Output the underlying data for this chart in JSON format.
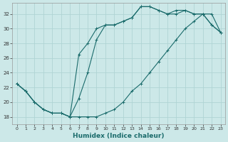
{
  "xlabel": "Humidex (Indice chaleur)",
  "bg_color": "#cce8e8",
  "grid_color": "#b0d4d4",
  "line_color": "#1a6b6b",
  "xlim": [
    -0.5,
    23.5
  ],
  "ylim": [
    17.0,
    33.5
  ],
  "xticks": [
    0,
    1,
    2,
    3,
    4,
    5,
    6,
    7,
    8,
    9,
    10,
    11,
    12,
    13,
    14,
    15,
    16,
    17,
    18,
    19,
    20,
    21,
    22,
    23
  ],
  "yticks": [
    18,
    20,
    22,
    24,
    26,
    28,
    30,
    32
  ],
  "series1_x": [
    0,
    1,
    2,
    3,
    4,
    5,
    6,
    7,
    8,
    9,
    10,
    11,
    12,
    13,
    14,
    15,
    16,
    17,
    18,
    19,
    20,
    21,
    22,
    23
  ],
  "series1_y": [
    22.5,
    21.5,
    20.0,
    19.0,
    18.5,
    18.5,
    18.0,
    18.0,
    18.0,
    18.0,
    18.5,
    19.0,
    20.0,
    21.5,
    22.5,
    24.0,
    25.5,
    27.0,
    28.5,
    30.0,
    31.0,
    32.0,
    32.0,
    29.5
  ],
  "series2_x": [
    0,
    1,
    2,
    3,
    4,
    5,
    6,
    7,
    8,
    9,
    10,
    11,
    12,
    13,
    14,
    15,
    16,
    17,
    18,
    19,
    20,
    21,
    22,
    23
  ],
  "series2_y": [
    22.5,
    21.5,
    20.0,
    19.0,
    18.5,
    18.5,
    18.0,
    26.5,
    28.0,
    30.0,
    30.5,
    30.5,
    31.0,
    31.5,
    33.0,
    33.0,
    32.5,
    32.0,
    32.0,
    32.5,
    32.0,
    32.0,
    30.5,
    29.5
  ],
  "series3_x": [
    0,
    1,
    2,
    3,
    4,
    5,
    6,
    7,
    8,
    9,
    10,
    11,
    12,
    13,
    14,
    15,
    16,
    17,
    18,
    19,
    20,
    21,
    22,
    23
  ],
  "series3_y": [
    22.5,
    21.5,
    20.0,
    19.0,
    18.5,
    18.5,
    18.0,
    20.5,
    24.0,
    28.5,
    30.5,
    30.5,
    31.0,
    31.5,
    33.0,
    33.0,
    32.5,
    32.0,
    32.5,
    32.5,
    32.0,
    32.0,
    30.5,
    29.5
  ]
}
